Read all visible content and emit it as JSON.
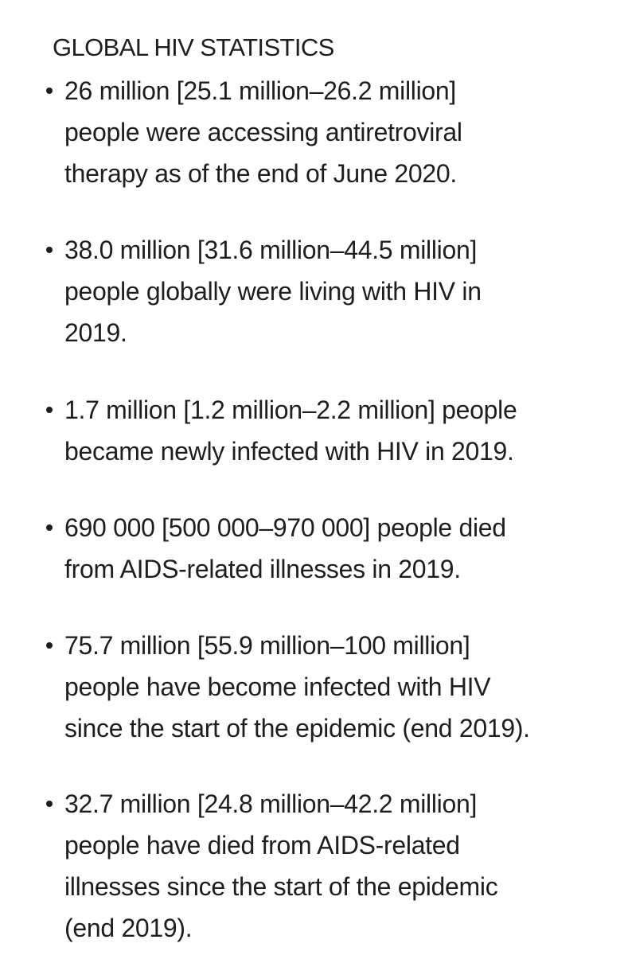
{
  "title": "GLOBAL HIV STATISTICS",
  "stats": [
    {
      "lines": [
        "26 million [25.1 million–26.2 million]",
        "people were accessing antiretroviral",
        "therapy as of the end of June 2020."
      ]
    },
    {
      "lines": [
        "38.0 million [31.6 million–44.5 million]",
        "people globally were living with HIV in",
        "2019."
      ]
    },
    {
      "lines": [
        "1.7 million [1.2 million–2.2 million] people",
        "became newly infected with HIV in 2019."
      ]
    },
    {
      "lines": [
        "690 000 [500 000–970 000] people died",
        "from AIDS-related illnesses in 2019."
      ]
    },
    {
      "lines": [
        "75.7 million [55.9 million–100 million]",
        "people have become infected with HIV",
        "since the start of the epidemic (end 2019)."
      ]
    },
    {
      "lines": [
        "32.7 million [24.8 million–42.2 million]",
        "people have died from AIDS-related",
        "illnesses since the start of the epidemic",
        "(end 2019)."
      ]
    }
  ]
}
